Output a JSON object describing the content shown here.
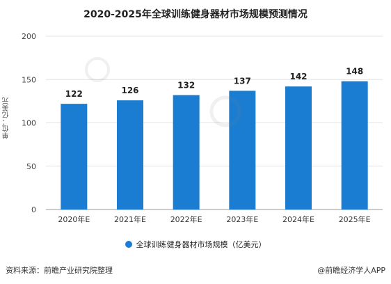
{
  "chart_data": {
    "type": "bar",
    "title": "2020-2025年全球训练健身器材市场规模预测情况",
    "categories": [
      "2020年E",
      "2021年E",
      "2022年E",
      "2023年E",
      "2024年E",
      "2025年E"
    ],
    "series": [
      {
        "name": "全球训练健身器材市场规模（亿美元）",
        "values": [
          122,
          126,
          132,
          137,
          142,
          148
        ]
      }
    ],
    "ylabel": "单位：亿美元",
    "xlabel": "",
    "ylim": [
      0,
      200
    ],
    "yticks": [
      0,
      50,
      100,
      150,
      200
    ],
    "grid": true,
    "legend_position": "bottom",
    "bar_color": "#1a7dd1",
    "data_labels": true
  },
  "footer": {
    "source": "资料来源：前瞻产业研究院整理",
    "brand": "@前瞻经济学人APP"
  }
}
